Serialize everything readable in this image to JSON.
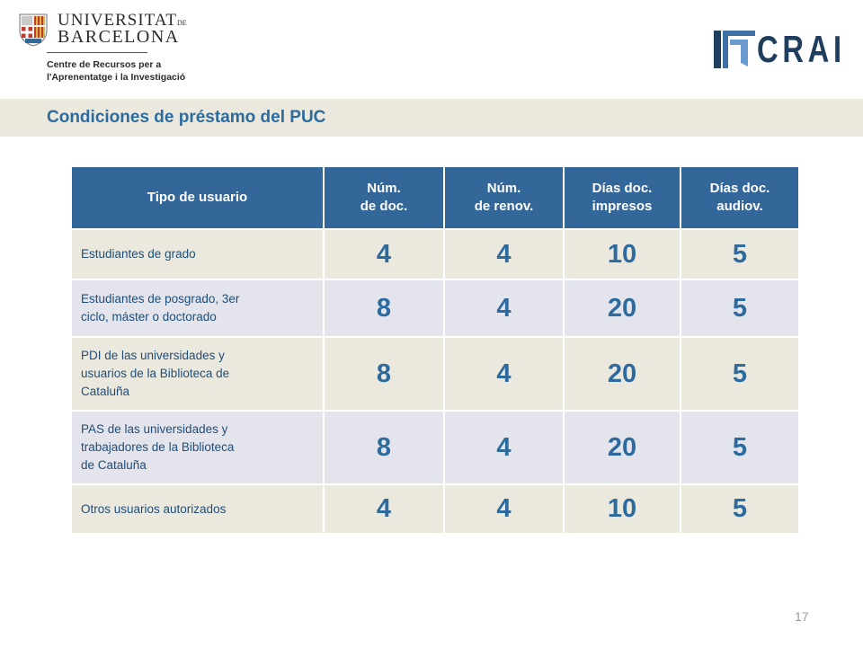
{
  "header": {
    "ub_name_line1": "UNIVERSITAT",
    "ub_name_de": "DE",
    "ub_name_line2": "BARCELONA",
    "ub_subtitle_1": "Centre de Recursos per a",
    "ub_subtitle_2": "l'Aprenentatge i la Investigació",
    "crai_logo_text": "CRAI",
    "crai_color": "#1f3d5c"
  },
  "title": "Condiciones de préstamo del PUC",
  "table": {
    "headers": [
      [
        "Tipo de usuario"
      ],
      [
        "Núm.",
        "de doc."
      ],
      [
        "Núm.",
        "de renov."
      ],
      [
        "Días doc.",
        "impresos"
      ],
      [
        "Días doc.",
        "audiov."
      ]
    ],
    "rows": [
      {
        "user": [
          "Estudiantes de grado"
        ],
        "num_docs": "4",
        "num_renov": "4",
        "dias_impresos": "10",
        "dias_audiov": "5"
      },
      {
        "user": [
          "Estudiantes de posgrado, 3er",
          "ciclo, máster o doctorado"
        ],
        "num_docs": "8",
        "num_renov": "4",
        "dias_impresos": "20",
        "dias_audiov": "5"
      },
      {
        "user": [
          "PDI de las universidades y",
          "usuarios de la Biblioteca de",
          "Cataluña"
        ],
        "num_docs": "8",
        "num_renov": "4",
        "dias_impresos": "20",
        "dias_audiov": "5"
      },
      {
        "user": [
          "PAS de las universidades y",
          "trabajadores de la Biblioteca",
          "de Cataluña"
        ],
        "num_docs": "8",
        "num_renov": "4",
        "dias_impresos": "20",
        "dias_audiov": "5"
      },
      {
        "user": [
          "Otros usuarios autorizados"
        ],
        "num_docs": "4",
        "num_renov": "4",
        "dias_impresos": "10",
        "dias_audiov": "5"
      }
    ]
  },
  "page_number": "17",
  "colors": {
    "header_blue": "#336699",
    "title_blue": "#2d6b9f",
    "band_beige": "#ebe8dd",
    "row_lavender": "#e4e4ec"
  }
}
